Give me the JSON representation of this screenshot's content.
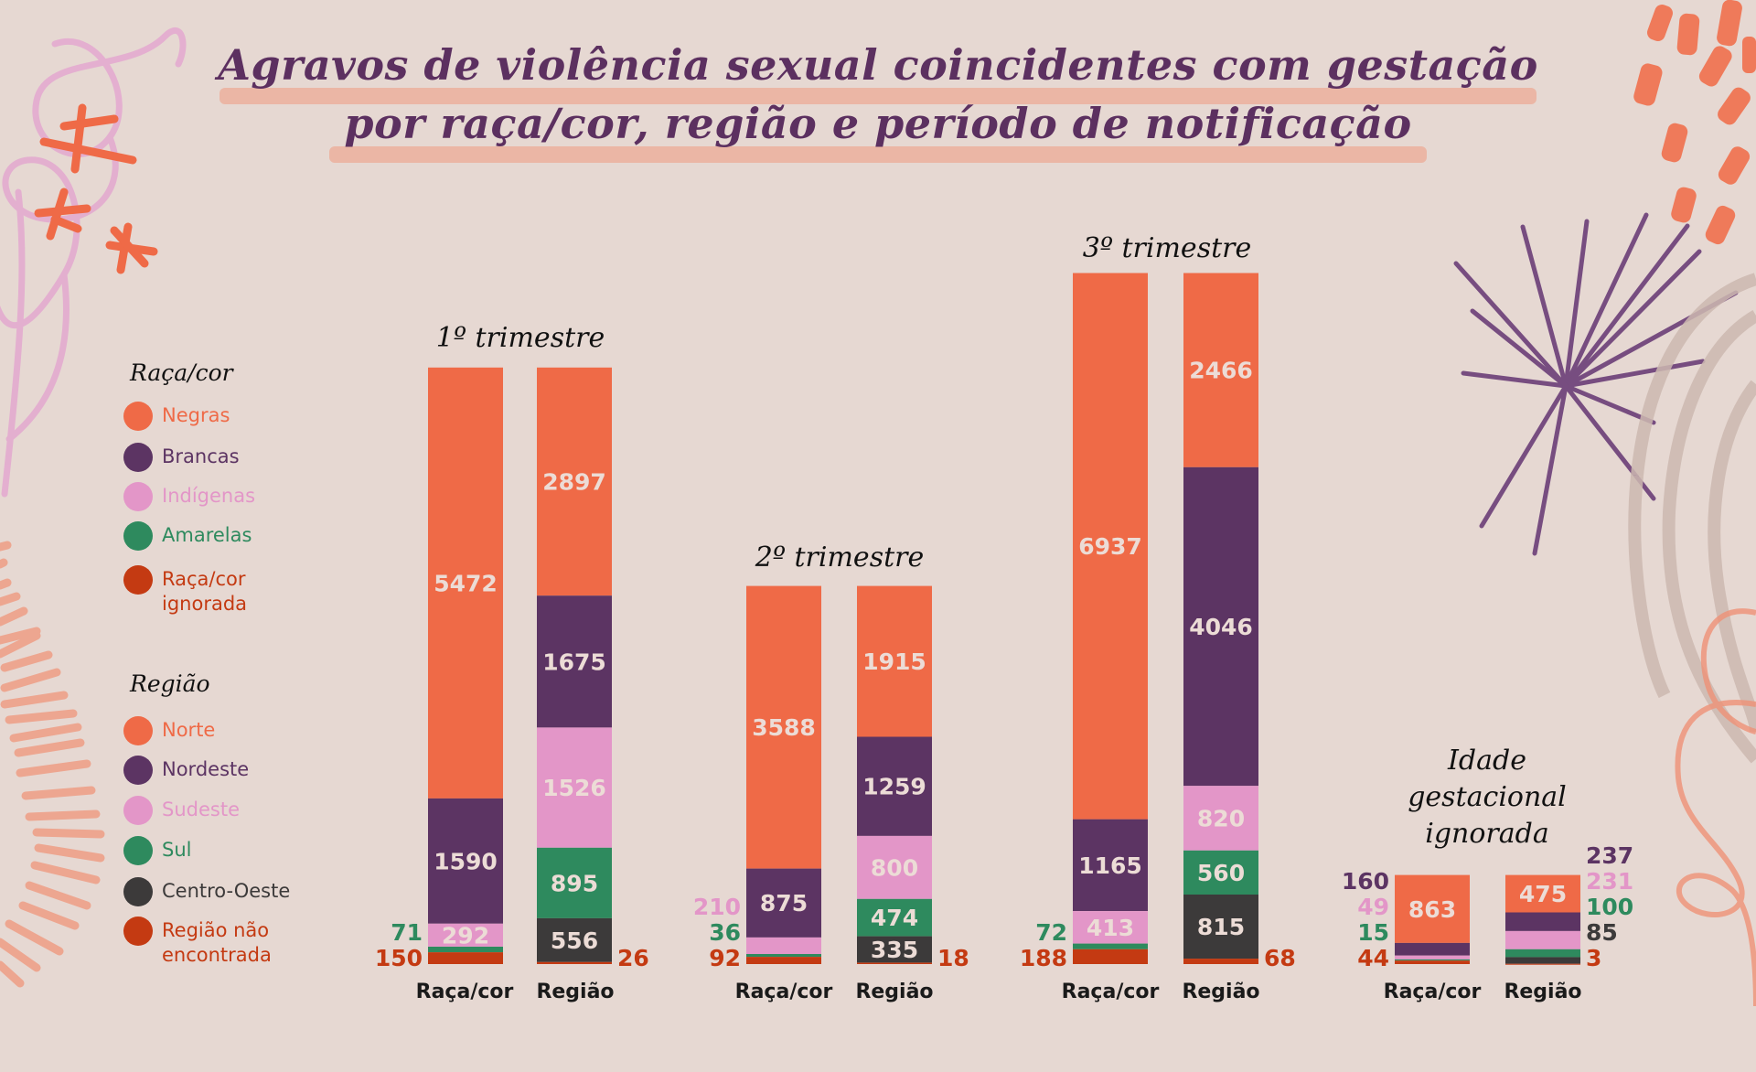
{
  "title": {
    "line1": "Agravos de violência sexual coincidentes com gestação",
    "line2": "por raça/cor, região e período de notificação"
  },
  "colors": {
    "negras": "#ef6a47",
    "brancas": "#5c3463",
    "indigenas": "#e396c8",
    "amarelas": "#2e8a5e",
    "racacor_ignorada": "#c43a12",
    "norte": "#ef6a47",
    "nordeste": "#5c3463",
    "sudeste": "#e396c8",
    "sul": "#2e8a5e",
    "centro_oeste": "#3c3a3a",
    "regiao_nao_encontrada": "#c43a12",
    "segment_text": "#ecdcd6"
  },
  "legend": {
    "raca": {
      "heading": "Raça/cor",
      "items": [
        {
          "label": "Negras",
          "color": "#ef6a47"
        },
        {
          "label": "Brancas",
          "color": "#5c3463"
        },
        {
          "label": "Indígenas",
          "color": "#e396c8"
        },
        {
          "label": "Amarelas",
          "color": "#2e8a5e"
        },
        {
          "label": "Raça/cor ignorada",
          "color": "#c43a12"
        }
      ]
    },
    "regiao": {
      "heading": "Região",
      "items": [
        {
          "label": "Norte",
          "color": "#ef6a47"
        },
        {
          "label": "Nordeste",
          "color": "#5c3463"
        },
        {
          "label": "Sudeste",
          "color": "#e396c8"
        },
        {
          "label": "Sul",
          "color": "#2e8a5e"
        },
        {
          "label": "Centro-Oeste",
          "color": "#3c3a3a"
        },
        {
          "label": "Região não encontrada",
          "color": "#c43a12"
        }
      ]
    }
  },
  "chart_data": {
    "type": "bar",
    "stacked": true,
    "title": "Agravos de violência sexual coincidentes com gestação por raça/cor, região e período de notificação",
    "xlabel": "",
    "ylabel": "",
    "grid": false,
    "legend_position": "left",
    "groups": [
      {
        "period": "1º trimestre",
        "bars": [
          {
            "category": "Raça/cor",
            "series": [
              "Negras",
              "Brancas",
              "Indígenas",
              "Amarelas",
              "Raça/cor ignorada"
            ],
            "values": [
              5472,
              1590,
              292,
              71,
              150
            ]
          },
          {
            "category": "Região",
            "series": [
              "Norte",
              "Nordeste",
              "Sudeste",
              "Sul",
              "Centro-Oeste",
              "Região não encontrada"
            ],
            "values": [
              2897,
              1675,
              1526,
              895,
              556,
              26
            ]
          }
        ]
      },
      {
        "period": "2º trimestre",
        "bars": [
          {
            "category": "Raça/cor",
            "series": [
              "Negras",
              "Brancas",
              "Indígenas",
              "Amarelas",
              "Raça/cor ignorada"
            ],
            "values": [
              3588,
              875,
              210,
              36,
              92
            ]
          },
          {
            "category": "Região",
            "series": [
              "Norte",
              "Nordeste",
              "Sudeste",
              "Sul",
              "Centro-Oeste",
              "Região não encontrada"
            ],
            "values": [
              1915,
              1259,
              800,
              474,
              335,
              18
            ]
          }
        ]
      },
      {
        "period": "3º trimestre",
        "bars": [
          {
            "category": "Raça/cor",
            "series": [
              "Negras",
              "Brancas",
              "Indígenas",
              "Amarelas",
              "Raça/cor ignorada"
            ],
            "values": [
              6937,
              1165,
              413,
              72,
              188
            ]
          },
          {
            "category": "Região",
            "series": [
              "Norte",
              "Nordeste",
              "Sudeste",
              "Sul",
              "Centro-Oeste",
              "Região não encontrada"
            ],
            "values": [
              2466,
              4046,
              820,
              560,
              815,
              68
            ]
          }
        ]
      },
      {
        "period": "Idade gestacional ignorada",
        "bars": [
          {
            "category": "Raça/cor",
            "series": [
              "Negras",
              "Brancas",
              "Indígenas",
              "Amarelas",
              "Raça/cor ignorada"
            ],
            "values": [
              863,
              160,
              49,
              15,
              44
            ]
          },
          {
            "category": "Região",
            "series": [
              "Norte",
              "Nordeste",
              "Sudeste",
              "Sul",
              "Centro-Oeste",
              "Região não encontrada"
            ],
            "values": [
              475,
              237,
              231,
              100,
              85,
              3
            ]
          }
        ]
      }
    ]
  },
  "period_titles": [
    "1º trimestre",
    "2º trimestre",
    "3º trimestre",
    "Idade gestacional ignorada"
  ],
  "axis_labels": {
    "raca": "Raça/cor",
    "regiao": "Região"
  }
}
